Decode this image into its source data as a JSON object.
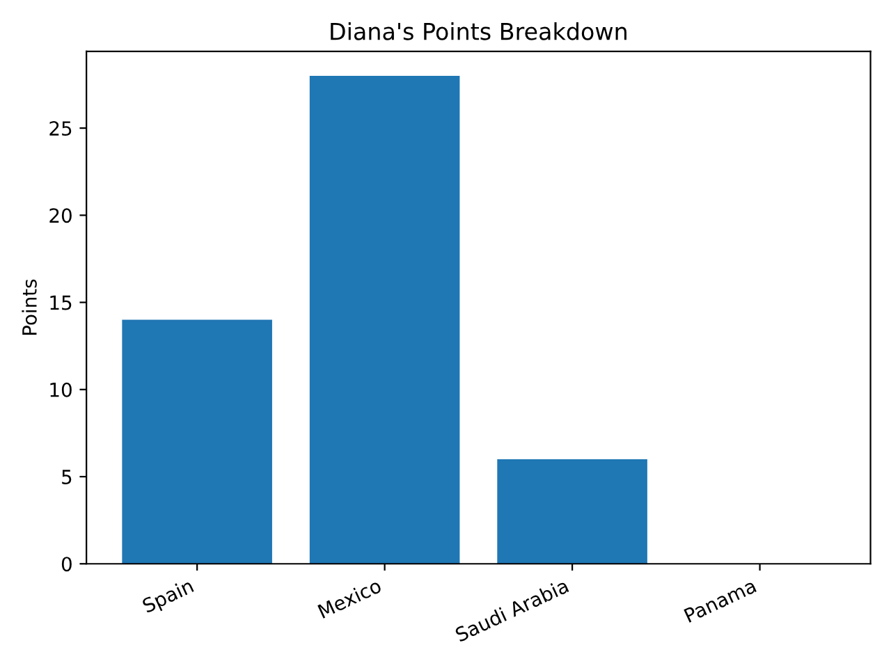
{
  "chart_data": {
    "type": "bar",
    "title": "Diana's Points Breakdown",
    "ylabel": "Points",
    "categories": [
      "Spain",
      "Mexico",
      "Saudi Arabia",
      "Panama"
    ],
    "values": [
      14,
      28,
      6,
      0
    ],
    "color": "#1f77b4",
    "ylim": [
      0,
      29.4
    ],
    "yticks": [
      0,
      5,
      10,
      15,
      20,
      25
    ],
    "grid": false
  }
}
